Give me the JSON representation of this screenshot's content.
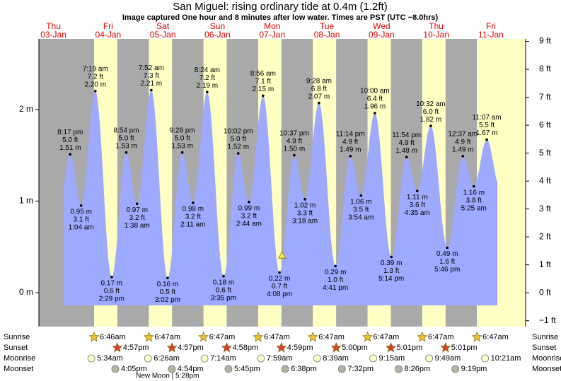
{
  "chart_data": {
    "type": "area",
    "title": "San Miguel: rising  ordinary tide at 0.4m (1.2ft)",
    "subtitle": "Image captured One hour and 8 minutes after low water. Times are PST (UTC −8.0hrs)",
    "days": [
      {
        "weekday": "Thu",
        "date": "03-Jan"
      },
      {
        "weekday": "Fri",
        "date": "04-Jan"
      },
      {
        "weekday": "Sat",
        "date": "05-Jan"
      },
      {
        "weekday": "Sun",
        "date": "06-Jan"
      },
      {
        "weekday": "Mon",
        "date": "07-Jan"
      },
      {
        "weekday": "Tue",
        "date": "08-Jan"
      },
      {
        "weekday": "Wed",
        "date": "09-Jan"
      },
      {
        "weekday": "Thu",
        "date": "10-Jan"
      },
      {
        "weekday": "Fri",
        "date": "11-Jan"
      }
    ],
    "dates": [
      "03-Jan",
      "04-Jan",
      "04-Jan",
      "04-Jan",
      "04-Jan",
      "05-Jan",
      "05-Jan",
      "05-Jan",
      "05-Jan",
      "06-Jan",
      "06-Jan",
      "06-Jan",
      "06-Jan",
      "07-Jan",
      "07-Jan",
      "07-Jan",
      "07-Jan",
      "08-Jan",
      "08-Jan",
      "08-Jan",
      "08-Jan",
      "09-Jan",
      "09-Jan",
      "09-Jan",
      "09-Jan",
      "10-Jan",
      "10-Jan",
      "10-Jan",
      "11-Jan",
      "11-Jan",
      "11-Jan"
    ],
    "times": [
      "8:17 pm",
      "1:04 am",
      "7:19 am",
      "2:29 pm",
      "8:54 pm",
      "1:38 am",
      "7:52 am",
      "3:02 pm",
      "9:28 pm",
      "2:11 am",
      "8:24 am",
      "3:35 pm",
      "10:02 pm",
      "2:44 am",
      "8:56 am",
      "4:08 pm",
      "10:37 pm",
      "3:18 am",
      "9:28 am",
      "4:41 pm",
      "11:14 pm",
      "3:54 am",
      "10:00 am",
      "5:14 pm",
      "11:54 pm",
      "4:35 am",
      "10:32 am",
      "5:46 pm",
      "12:37 am",
      "5:25 am",
      "11:07 am"
    ],
    "values": [
      1.51,
      0.95,
      2.2,
      0.17,
      1.53,
      0.97,
      2.21,
      0.16,
      1.53,
      0.98,
      2.19,
      0.18,
      1.52,
      0.99,
      2.15,
      0.22,
      1.5,
      1.02,
      2.07,
      0.29,
      1.49,
      1.06,
      1.96,
      0.39,
      1.48,
      1.11,
      1.82,
      0.49,
      1.49,
      1.16,
      1.67
    ],
    "value_labels": [
      "1.51 m",
      "0.95 m",
      "2.20 m",
      "0.17 m",
      "1.53 m",
      "0.97 m",
      "2.21 m",
      "0.16 m",
      "1.53 m",
      "0.98 m",
      "2.19 m",
      "0.18 m",
      "1.52 m",
      "0.99 m",
      "2.15 m",
      "0.22 m",
      "1.50 m",
      "1.02 m",
      "2.07 m",
      "0.29 m",
      "1.49 m",
      "1.06 m",
      "1.96 m",
      "0.39 m",
      "1.48 m",
      "1.11 m",
      "1.82 m",
      "0.49 m",
      "1.49 m",
      "1.16 m",
      "1.67 m"
    ],
    "y2_values": [
      5.0,
      3.1,
      7.2,
      0.6,
      5.0,
      3.2,
      7.3,
      0.5,
      5.0,
      3.2,
      7.2,
      0.6,
      5.0,
      3.2,
      7.1,
      0.7,
      4.9,
      3.3,
      6.8,
      1.0,
      4.9,
      3.5,
      6.4,
      1.3,
      4.9,
      3.6,
      6.0,
      1.6,
      4.9,
      3.8,
      5.5
    ],
    "y2_value_labels": [
      "5.0 ft",
      "3.1 ft",
      "7.2 ft",
      "0.6 ft",
      "5.0 ft",
      "3.2 ft",
      "7.3 ft",
      "0.5 ft",
      "5.0 ft",
      "3.2 ft",
      "7.2 ft",
      "0.6 ft",
      "5.0 ft",
      "3.2 ft",
      "7.1 ft",
      "0.7 ft",
      "4.9 ft",
      "3.3 ft",
      "6.8 ft",
      "1.0 ft",
      "4.9 ft",
      "3.5 ft",
      "6.4 ft",
      "1.3 ft",
      "4.9 ft",
      "3.6 ft",
      "6.0 ft",
      "1.6 ft",
      "4.9 ft",
      "3.8 ft",
      "5.5 ft"
    ],
    "ylim": [
      -0.37,
      2.77
    ],
    "yticks": [
      {
        "value": 0,
        "label": "0 m"
      },
      {
        "value": 1,
        "label": "1 m"
      },
      {
        "value": 2,
        "label": "2 m"
      }
    ],
    "y2lim": [
      -1.21,
      9.09
    ],
    "y2ticks": [
      {
        "value": -1,
        "label": "−1 ft"
      },
      {
        "value": 0,
        "label": "0 ft"
      },
      {
        "value": 1,
        "label": "1 ft"
      },
      {
        "value": 2,
        "label": "2 ft"
      },
      {
        "value": 3,
        "label": "3 ft"
      },
      {
        "value": 4,
        "label": "4 ft"
      },
      {
        "value": 5,
        "label": "5 ft"
      },
      {
        "value": 6,
        "label": "6 ft"
      },
      {
        "value": 7,
        "label": "7 ft"
      },
      {
        "value": 8,
        "label": "8 ft"
      },
      {
        "value": 9,
        "label": "9 ft"
      }
    ],
    "colors": {
      "water": "#9daaff",
      "day": "#ffffc4",
      "night": "#a9a9a9",
      "header": "#e00000"
    },
    "marker": {
      "date": "07-Jan",
      "time": "5:16 pm",
      "value": 0.4,
      "color": "#ffee44"
    },
    "events": [
      {
        "label": "Sunrise",
        "icon": "star",
        "color": "#f2c230",
        "dates": [
          "04-Jan",
          "05-Jan",
          "06-Jan",
          "07-Jan",
          "08-Jan",
          "09-Jan",
          "10-Jan",
          "11-Jan"
        ],
        "times": [
          "6:46am",
          "6:47am",
          "6:47am",
          "6:47am",
          "6:47am",
          "6:47am",
          "6:47am",
          "6:47am"
        ]
      },
      {
        "label": "Sunset",
        "icon": "star",
        "color": "#d2452a",
        "dates": [
          "04-Jan",
          "05-Jan",
          "06-Jan",
          "07-Jan",
          "08-Jan",
          "09-Jan",
          "10-Jan"
        ],
        "times": [
          "4:57pm",
          "4:57pm",
          "4:58pm",
          "4:59pm",
          "5:00pm",
          "5:01pm",
          "5:01pm"
        ]
      },
      {
        "label": "Moonrise",
        "icon": "circle",
        "color": "#ffffcc",
        "dates": [
          "04-Jan",
          "05-Jan",
          "06-Jan",
          "07-Jan",
          "08-Jan",
          "09-Jan",
          "10-Jan",
          "11-Jan"
        ],
        "times": [
          "5:34am",
          "6:26am",
          "7:14am",
          "7:59am",
          "8:39am",
          "9:15am",
          "9:49am",
          "10:21am"
        ]
      },
      {
        "label": "Moonset",
        "icon": "circle",
        "color": "#b4b4a4",
        "dates": [
          "04-Jan",
          "05-Jan",
          "06-Jan",
          "07-Jan",
          "08-Jan",
          "09-Jan",
          "10-Jan"
        ],
        "times": [
          "4:05pm",
          "4:54pm",
          "5:45pm",
          "6:38pm",
          "7:32pm",
          "8:26pm",
          "9:19pm"
        ]
      }
    ],
    "phase": {
      "text": "New Moon | 5:28pm",
      "date": "05-Jan",
      "time": "5:28pm"
    }
  }
}
